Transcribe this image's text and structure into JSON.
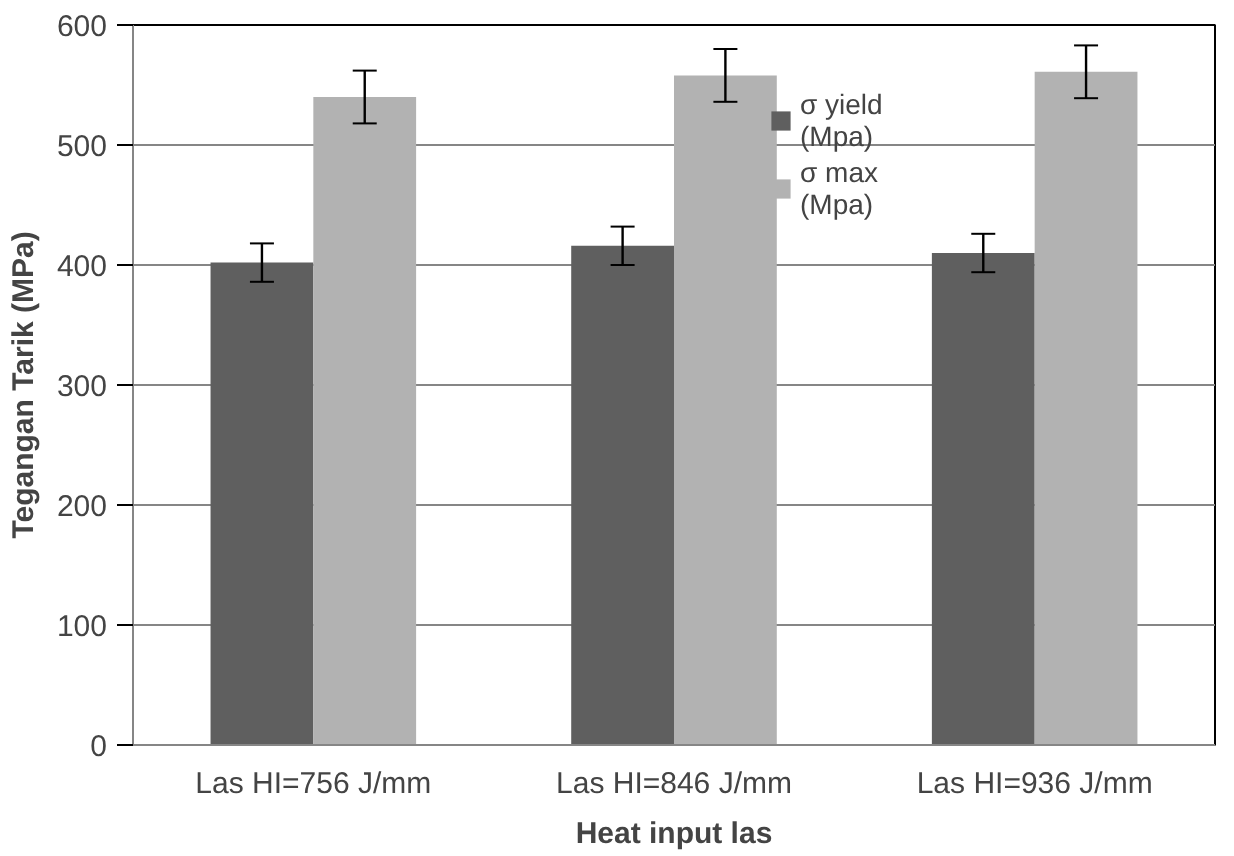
{
  "chart_data": {
    "type": "bar",
    "xlabel": "Heat input las",
    "ylabel": "Tegangan Tarik (MPa)",
    "categories": [
      "Las HI=756 J/mm",
      "Las HI=846 J/mm",
      "Las HI=936 J/mm"
    ],
    "series": [
      {
        "name": "σ yield\n(Mpa)",
        "color": "#5f5f5f",
        "values": [
          402,
          416,
          410
        ],
        "errors": [
          16,
          16,
          16
        ]
      },
      {
        "name": "σ max\n(Mpa)",
        "color": "#b2b2b2",
        "values": [
          540,
          558,
          561
        ],
        "errors": [
          22,
          22,
          22
        ]
      }
    ],
    "ylim": [
      0,
      600
    ],
    "yticks": [
      0,
      100,
      200,
      300,
      400,
      500,
      600
    ],
    "grid": "y",
    "legend": "top right"
  }
}
